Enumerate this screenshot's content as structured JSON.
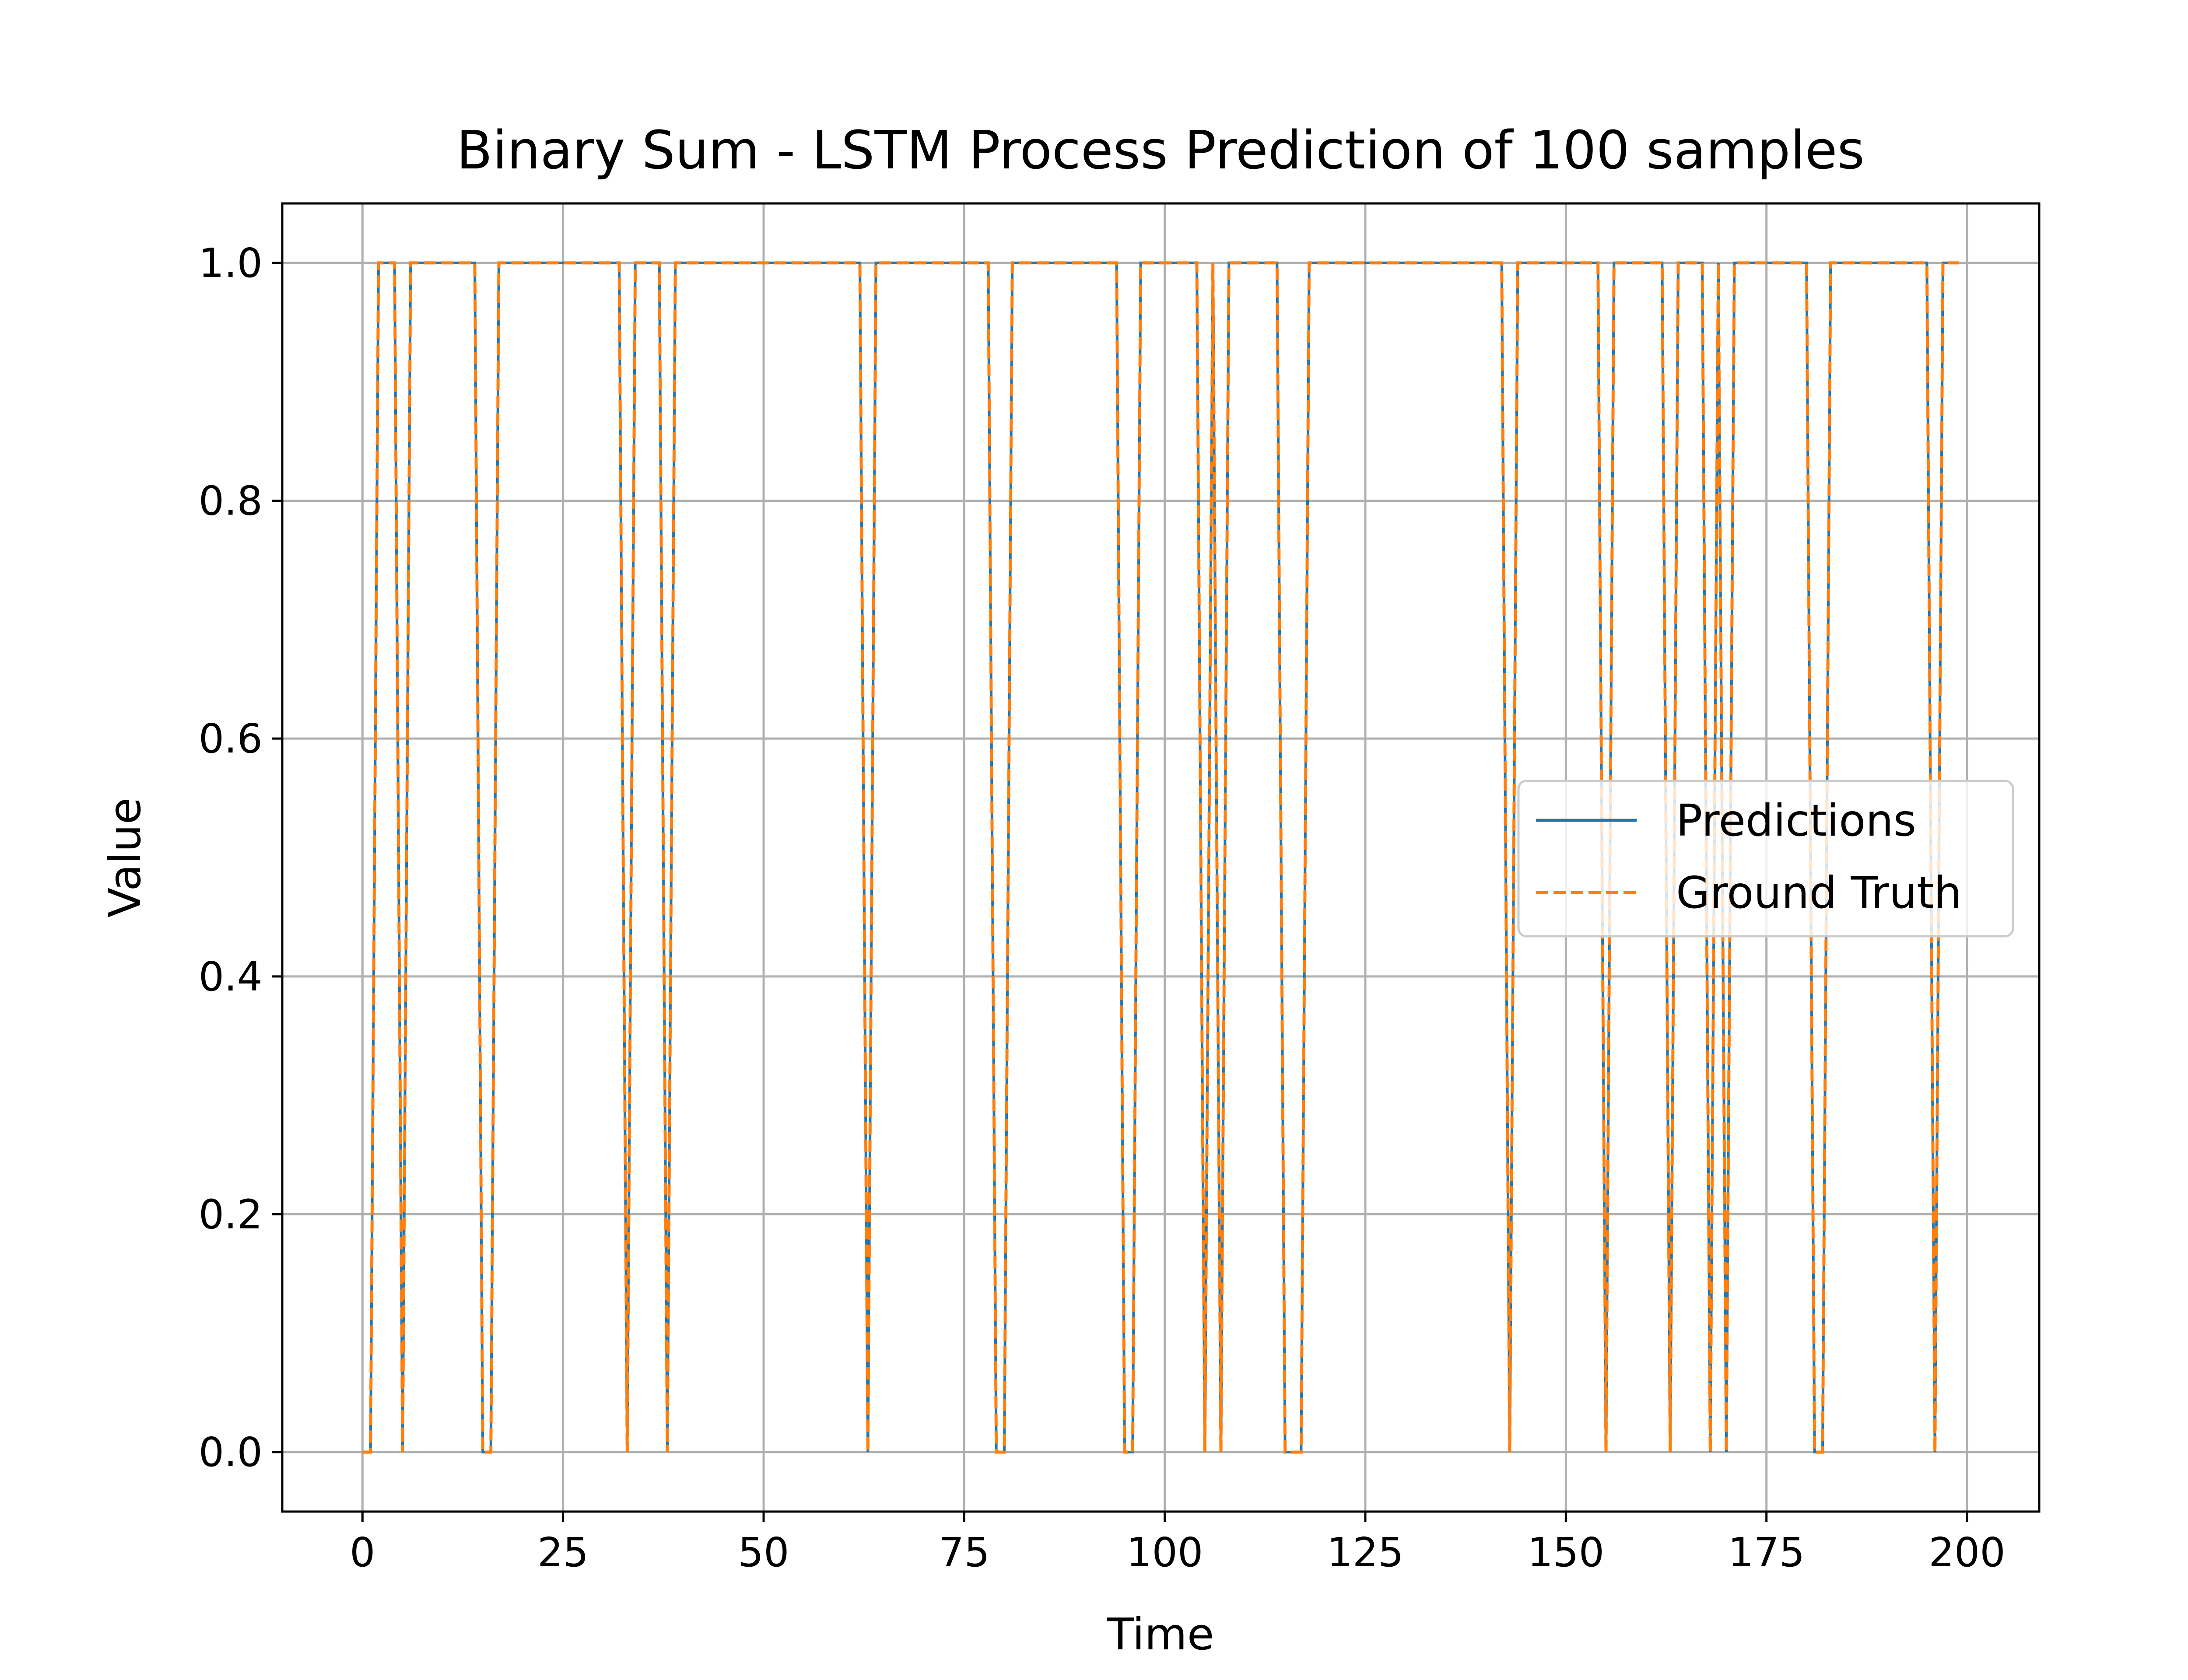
{
  "chart_data": {
    "type": "line",
    "title": "Binary Sum - LSTM Process Prediction of 100 samples",
    "xlabel": "Time",
    "ylabel": "Value",
    "xlim": [
      -10,
      209
    ],
    "ylim": [
      -0.05,
      1.05
    ],
    "xticks": [
      0,
      25,
      50,
      75,
      100,
      125,
      150,
      175,
      200
    ],
    "xtick_labels": [
      "0",
      "25",
      "50",
      "75",
      "100",
      "125",
      "150",
      "175",
      "200"
    ],
    "yticks": [
      0.0,
      0.2,
      0.4,
      0.6,
      0.8,
      1.0
    ],
    "ytick_labels": [
      "0.0",
      "0.2",
      "0.4",
      "0.6",
      "0.8",
      "1.0"
    ],
    "grid": true,
    "legend": "center-right",
    "x": [
      0,
      1,
      2,
      3,
      4,
      5,
      6,
      7,
      8,
      9,
      10,
      11,
      12,
      13,
      14,
      15,
      16,
      17,
      18,
      19,
      20,
      21,
      22,
      23,
      24,
      25,
      26,
      27,
      28,
      29,
      30,
      31,
      32,
      33,
      34,
      35,
      36,
      37,
      38,
      39,
      40,
      41,
      42,
      43,
      44,
      45,
      46,
      47,
      48,
      49,
      50,
      51,
      52,
      53,
      54,
      55,
      56,
      57,
      58,
      59,
      60,
      61,
      62,
      63,
      64,
      65,
      66,
      67,
      68,
      69,
      70,
      71,
      72,
      73,
      74,
      75,
      76,
      77,
      78,
      79,
      80,
      81,
      82,
      83,
      84,
      85,
      86,
      87,
      88,
      89,
      90,
      91,
      92,
      93,
      94,
      95,
      96,
      97,
      98,
      99,
      100,
      101,
      102,
      103,
      104,
      105,
      106,
      107,
      108,
      109,
      110,
      111,
      112,
      113,
      114,
      115,
      116,
      117,
      118,
      119,
      120,
      121,
      122,
      123,
      124,
      125,
      126,
      127,
      128,
      129,
      130,
      131,
      132,
      133,
      134,
      135,
      136,
      137,
      138,
      139,
      140,
      141,
      142,
      143,
      144,
      145,
      146,
      147,
      148,
      149,
      150,
      151,
      152,
      153,
      154,
      155,
      156,
      157,
      158,
      159,
      160,
      161,
      162,
      163,
      164,
      165,
      166,
      167,
      168,
      169,
      170,
      171,
      172,
      173,
      174,
      175,
      176,
      177,
      178,
      179,
      180,
      181,
      182,
      183,
      184,
      185,
      186,
      187,
      188,
      189,
      190,
      191,
      192,
      193,
      194,
      195,
      196,
      197,
      198,
      199
    ],
    "series": [
      {
        "name": "Predictions",
        "color": "#1f77b4",
        "style": "solid",
        "values": [
          0,
          0,
          1,
          1,
          1,
          0,
          1,
          1,
          1,
          1,
          1,
          1,
          1,
          1,
          1,
          0,
          0,
          1,
          1,
          1,
          1,
          1,
          1,
          1,
          1,
          1,
          1,
          1,
          1,
          1,
          1,
          1,
          1,
          0,
          1,
          1,
          1,
          1,
          0,
          1,
          1,
          1,
          1,
          1,
          1,
          1,
          1,
          1,
          1,
          1,
          1,
          1,
          1,
          1,
          1,
          1,
          1,
          1,
          1,
          1,
          1,
          1,
          1,
          0,
          1,
          1,
          1,
          1,
          1,
          1,
          1,
          1,
          1,
          1,
          1,
          1,
          1,
          1,
          1,
          0,
          0,
          1,
          1,
          1,
          1,
          1,
          1,
          1,
          1,
          1,
          1,
          1,
          1,
          1,
          1,
          0,
          0,
          1,
          1,
          1,
          1,
          1,
          1,
          1,
          1,
          0,
          1,
          0,
          1,
          1,
          1,
          1,
          1,
          1,
          1,
          0,
          0,
          0,
          1,
          1,
          1,
          1,
          1,
          1,
          1,
          1,
          1,
          1,
          1,
          1,
          1,
          1,
          1,
          1,
          1,
          1,
          1,
          1,
          1,
          1,
          1,
          1,
          1,
          0,
          1,
          1,
          1,
          1,
          1,
          1,
          1,
          1,
          1,
          1,
          1,
          0,
          1,
          1,
          1,
          1,
          1,
          1,
          1,
          0,
          1,
          1,
          1,
          1,
          0,
          1,
          0,
          1,
          1,
          1,
          1,
          1,
          1,
          1,
          1,
          1,
          1,
          0,
          0,
          1,
          1,
          1,
          1,
          1,
          1,
          1,
          1,
          1,
          1,
          1,
          1,
          1,
          0,
          1,
          1,
          1
        ]
      },
      {
        "name": "Ground Truth",
        "color": "#ff7f0e",
        "style": "dashed",
        "values": [
          0,
          0,
          1,
          1,
          1,
          0,
          1,
          1,
          1,
          1,
          1,
          1,
          1,
          1,
          1,
          0,
          0,
          1,
          1,
          1,
          1,
          1,
          1,
          1,
          1,
          1,
          1,
          1,
          1,
          1,
          1,
          1,
          1,
          0,
          1,
          1,
          1,
          1,
          0,
          1,
          1,
          1,
          1,
          1,
          1,
          1,
          1,
          1,
          1,
          1,
          1,
          1,
          1,
          1,
          1,
          1,
          1,
          1,
          1,
          1,
          1,
          1,
          1,
          0,
          1,
          1,
          1,
          1,
          1,
          1,
          1,
          1,
          1,
          1,
          1,
          1,
          1,
          1,
          1,
          0,
          0,
          1,
          1,
          1,
          1,
          1,
          1,
          1,
          1,
          1,
          1,
          1,
          1,
          1,
          1,
          0,
          0,
          1,
          1,
          1,
          1,
          1,
          1,
          1,
          1,
          0,
          1,
          0,
          1,
          1,
          1,
          1,
          1,
          1,
          1,
          0,
          0,
          0,
          1,
          1,
          1,
          1,
          1,
          1,
          1,
          1,
          1,
          1,
          1,
          1,
          1,
          1,
          1,
          1,
          1,
          1,
          1,
          1,
          1,
          1,
          1,
          1,
          1,
          0,
          1,
          1,
          1,
          1,
          1,
          1,
          1,
          1,
          1,
          1,
          1,
          0,
          1,
          1,
          1,
          1,
          1,
          1,
          1,
          0,
          1,
          1,
          1,
          1,
          0,
          1,
          0,
          1,
          1,
          1,
          1,
          1,
          1,
          1,
          1,
          1,
          1,
          0,
          0,
          1,
          1,
          1,
          1,
          1,
          1,
          1,
          1,
          1,
          1,
          1,
          1,
          1,
          0,
          1,
          1,
          1
        ]
      }
    ]
  }
}
